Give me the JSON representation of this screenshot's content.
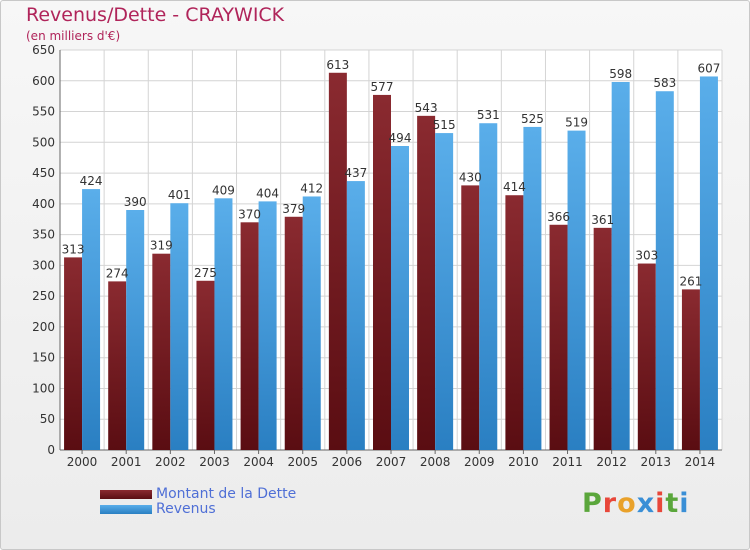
{
  "title": "Revenus/Dette - CRAYWICK",
  "subtitle": "(en milliers d'€)",
  "brand": {
    "logo_text": "Proxiti",
    "letter_colors": [
      "#5aa63b",
      "#e8473a",
      "#e9a12a",
      "#3a8fd6",
      "#e8473a",
      "#5aa63b",
      "#3a8fd6"
    ]
  },
  "colors": {
    "debt": "#7a1f26",
    "revenue": "#4aa3e3",
    "title": "#b0245a",
    "legend_text": "#4f6fd6"
  },
  "legend": {
    "debt_label": "Montant de la Dette",
    "revenue_label": "Revenus"
  },
  "chart_data": {
    "type": "bar",
    "title": "Revenus/Dette - CRAYWICK",
    "ylabel": "(en milliers d'€)",
    "ylim": [
      0,
      650
    ],
    "yticks": [
      0,
      50,
      100,
      150,
      200,
      250,
      300,
      350,
      400,
      450,
      500,
      550,
      600,
      650
    ],
    "grid": true,
    "categories": [
      "2000",
      "2001",
      "2002",
      "2003",
      "2004",
      "2005",
      "2006",
      "2007",
      "2008",
      "2009",
      "2010",
      "2011",
      "2012",
      "2013",
      "2014"
    ],
    "series": [
      {
        "name": "Montant de la Dette",
        "values": [
          313,
          274,
          319,
          275,
          370,
          379,
          613,
          577,
          543,
          430,
          414,
          366,
          361,
          303,
          261
        ]
      },
      {
        "name": "Revenus",
        "values": [
          424,
          390,
          401,
          409,
          404,
          412,
          437,
          494,
          515,
          531,
          525,
          519,
          598,
          583,
          607
        ]
      }
    ]
  }
}
